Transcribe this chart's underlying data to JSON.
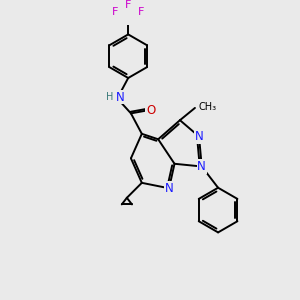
{
  "background_color": "#eaeaea",
  "figsize": [
    3.0,
    3.0
  ],
  "dpi": 100,
  "bond_color": "#000000",
  "bond_lw": 1.4,
  "atoms": {
    "N": "#1a1aff",
    "O": "#cc0000",
    "F": "#cc00cc",
    "C": "#000000",
    "H": "#3a7a7a"
  },
  "fs": 8.5
}
